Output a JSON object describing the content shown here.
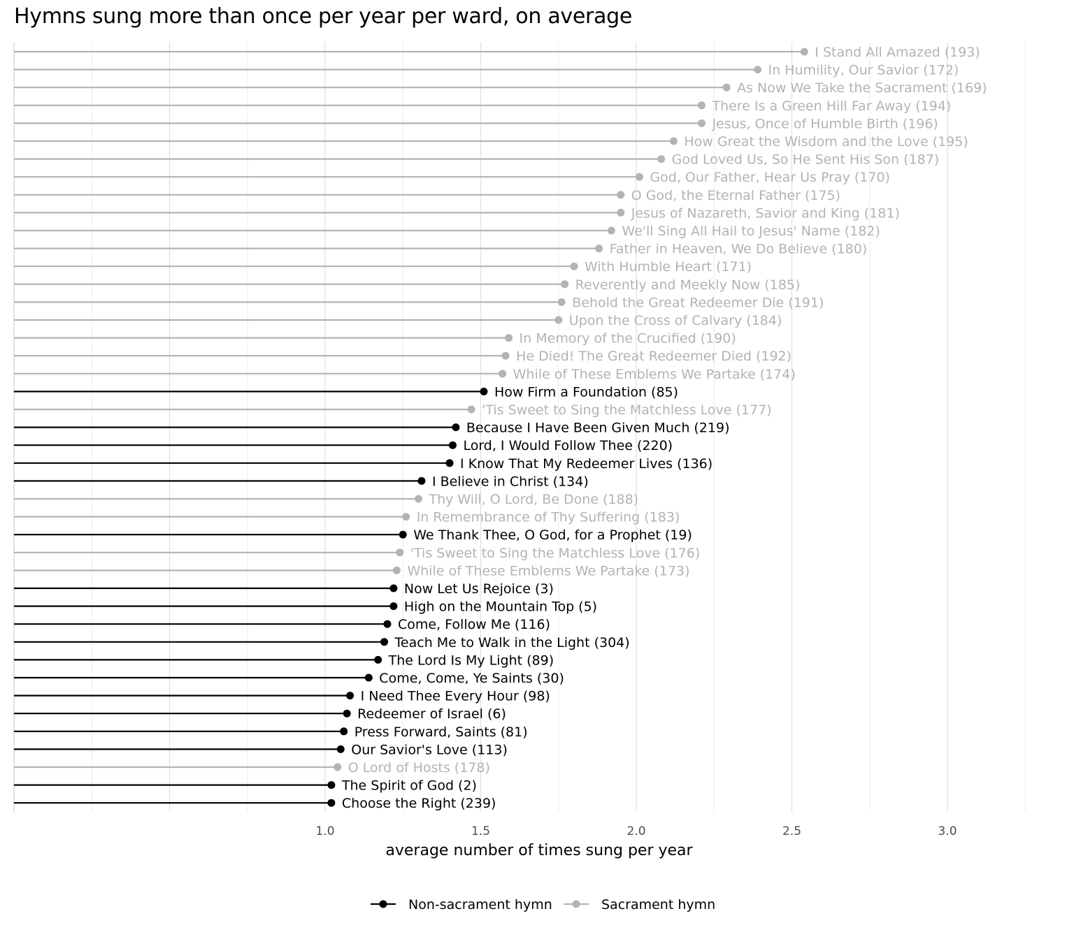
{
  "chart_data": {
    "type": "lollipop",
    "title": "Hymns sung more than once per year per ward, on average",
    "xlabel": "average number of times sung per year",
    "ylabel": "",
    "x_ticks": [
      "1.0",
      "1.5",
      "2.0",
      "2.5",
      "3.0"
    ],
    "xlim": [
      0,
      3.25
    ],
    "grid": true,
    "legend_position": "bottom",
    "colors": {
      "Non-sacrament hymn": "#000000",
      "Sacrament hymn": "#b3b3b3"
    },
    "series": [
      {
        "name": "Non-sacrament hymn"
      },
      {
        "name": "Sacrament hymn"
      }
    ],
    "points": [
      {
        "label": "I Stand All Amazed (193)",
        "value": 2.54,
        "group": "Sacrament hymn"
      },
      {
        "label": "In Humility, Our Savior (172)",
        "value": 2.39,
        "group": "Sacrament hymn"
      },
      {
        "label": "As Now We Take the Sacrament (169)",
        "value": 2.29,
        "group": "Sacrament hymn"
      },
      {
        "label": "There Is a Green Hill Far Away (194)",
        "value": 2.21,
        "group": "Sacrament hymn"
      },
      {
        "label": "Jesus, Once of Humble Birth (196)",
        "value": 2.21,
        "group": "Sacrament hymn"
      },
      {
        "label": "How Great the Wisdom and the Love (195)",
        "value": 2.12,
        "group": "Sacrament hymn"
      },
      {
        "label": "God Loved Us, So He Sent His Son (187)",
        "value": 2.08,
        "group": "Sacrament hymn"
      },
      {
        "label": "God, Our Father, Hear Us Pray (170)",
        "value": 2.01,
        "group": "Sacrament hymn"
      },
      {
        "label": "O God, the Eternal Father (175)",
        "value": 1.95,
        "group": "Sacrament hymn"
      },
      {
        "label": "Jesus of Nazareth, Savior and King (181)",
        "value": 1.95,
        "group": "Sacrament hymn"
      },
      {
        "label": "We'll Sing All Hail to Jesus' Name (182)",
        "value": 1.92,
        "group": "Sacrament hymn"
      },
      {
        "label": "Father in Heaven, We Do Believe (180)",
        "value": 1.88,
        "group": "Sacrament hymn"
      },
      {
        "label": "With Humble Heart (171)",
        "value": 1.8,
        "group": "Sacrament hymn"
      },
      {
        "label": "Reverently and Meekly Now (185)",
        "value": 1.77,
        "group": "Sacrament hymn"
      },
      {
        "label": "Behold the Great Redeemer Die (191)",
        "value": 1.76,
        "group": "Sacrament hymn"
      },
      {
        "label": "Upon the Cross of Calvary (184)",
        "value": 1.75,
        "group": "Sacrament hymn"
      },
      {
        "label": "In Memory of the Crucified (190)",
        "value": 1.59,
        "group": "Sacrament hymn"
      },
      {
        "label": "He Died! The Great Redeemer Died (192)",
        "value": 1.58,
        "group": "Sacrament hymn"
      },
      {
        "label": "While of These Emblems We Partake (174)",
        "value": 1.57,
        "group": "Sacrament hymn"
      },
      {
        "label": "How Firm a Foundation (85)",
        "value": 1.51,
        "group": "Non-sacrament hymn"
      },
      {
        "label": "'Tis Sweet to Sing the Matchless Love (177)",
        "value": 1.47,
        "group": "Sacrament hymn"
      },
      {
        "label": "Because I Have Been Given Much (219)",
        "value": 1.42,
        "group": "Non-sacrament hymn"
      },
      {
        "label": "Lord, I Would Follow Thee (220)",
        "value": 1.41,
        "group": "Non-sacrament hymn"
      },
      {
        "label": "I Know That My Redeemer Lives (136)",
        "value": 1.4,
        "group": "Non-sacrament hymn"
      },
      {
        "label": "I Believe in Christ (134)",
        "value": 1.31,
        "group": "Non-sacrament hymn"
      },
      {
        "label": "Thy Will, O Lord, Be Done (188)",
        "value": 1.3,
        "group": "Sacrament hymn"
      },
      {
        "label": "In Remembrance of Thy Suffering (183)",
        "value": 1.26,
        "group": "Sacrament hymn"
      },
      {
        "label": "We Thank Thee, O God, for a Prophet (19)",
        "value": 1.25,
        "group": "Non-sacrament hymn"
      },
      {
        "label": "'Tis Sweet to Sing the Matchless Love (176)",
        "value": 1.24,
        "group": "Sacrament hymn"
      },
      {
        "label": "While of These Emblems We Partake (173)",
        "value": 1.23,
        "group": "Sacrament hymn"
      },
      {
        "label": "Now Let Us Rejoice (3)",
        "value": 1.22,
        "group": "Non-sacrament hymn"
      },
      {
        "label": "High on the Mountain Top (5)",
        "value": 1.22,
        "group": "Non-sacrament hymn"
      },
      {
        "label": "Come, Follow Me (116)",
        "value": 1.2,
        "group": "Non-sacrament hymn"
      },
      {
        "label": "Teach Me to Walk in the Light (304)",
        "value": 1.19,
        "group": "Non-sacrament hymn"
      },
      {
        "label": "The Lord Is My Light (89)",
        "value": 1.17,
        "group": "Non-sacrament hymn"
      },
      {
        "label": "Come, Come, Ye Saints (30)",
        "value": 1.14,
        "group": "Non-sacrament hymn"
      },
      {
        "label": "I Need Thee Every Hour (98)",
        "value": 1.08,
        "group": "Non-sacrament hymn"
      },
      {
        "label": "Redeemer of Israel (6)",
        "value": 1.07,
        "group": "Non-sacrament hymn"
      },
      {
        "label": "Press Forward, Saints (81)",
        "value": 1.06,
        "group": "Non-sacrament hymn"
      },
      {
        "label": "Our Savior's Love (113)",
        "value": 1.05,
        "group": "Non-sacrament hymn"
      },
      {
        "label": "O Lord of Hosts (178)",
        "value": 1.04,
        "group": "Sacrament hymn"
      },
      {
        "label": "The Spirit of God (2)",
        "value": 1.02,
        "group": "Non-sacrament hymn"
      },
      {
        "label": "Choose the Right (239)",
        "value": 1.02,
        "group": "Non-sacrament hymn"
      }
    ]
  }
}
